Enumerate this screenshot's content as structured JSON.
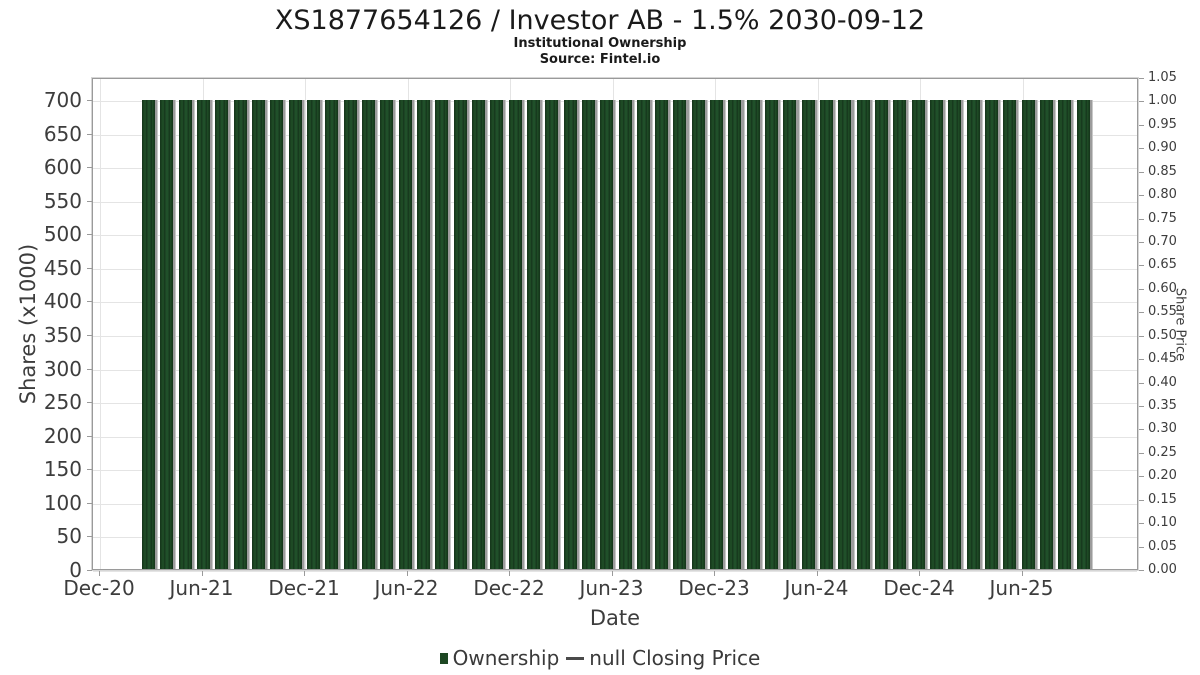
{
  "header": {
    "title": "XS1877654126 / Investor AB - 1.5% 2030-09-12",
    "subtitle": "Institutional Ownership",
    "source": "Source: Fintel.io"
  },
  "colors": {
    "bar_green": "#1d4723",
    "bar_green_edge": "#16381c",
    "bar_shadow_gray": "#9c9c9c",
    "grid": "#e4e4e4",
    "spine": "#9a9a9a",
    "text": "#3d3d3d",
    "title_text": "#1a1a1a"
  },
  "legend": {
    "items": [
      {
        "label": "Ownership",
        "marker": "square",
        "color": "#1d4723"
      },
      {
        "label": "null Closing Price",
        "marker": "line",
        "color": "#4a4a4a"
      }
    ]
  },
  "chart_data": {
    "type": "bar",
    "title": "XS1877654126 / Investor AB - 1.5% 2030-09-12",
    "subtitle": "Institutional Ownership",
    "source": "Source: Fintel.io",
    "xlabel": "Date",
    "ylabel_left": "Shares (x1000)",
    "ylabel_right": "Share Price",
    "grid": true,
    "legend_position": "bottom-center",
    "x_axis": {
      "tick_labels": [
        "Dec-20",
        "Jun-21",
        "Dec-21",
        "Jun-22",
        "Dec-22",
        "Jun-23",
        "Dec-23",
        "Jun-24",
        "Dec-24",
        "Jun-25"
      ]
    },
    "y_axis_left": {
      "min": 0,
      "max": 733,
      "tick_min": 0,
      "tick_max": 700,
      "step": 50,
      "tick_labels": [
        "0",
        "50",
        "100",
        "150",
        "200",
        "250",
        "300",
        "350",
        "400",
        "450",
        "500",
        "550",
        "600",
        "650",
        "700"
      ]
    },
    "y_axis_right": {
      "min": 0.0,
      "max": 1.05,
      "step": 0.05,
      "tick_labels": [
        "0.00",
        "0.05",
        "0.10",
        "0.15",
        "0.20",
        "0.25",
        "0.30",
        "0.35",
        "0.40",
        "0.45",
        "0.50",
        "0.55",
        "0.60",
        "0.65",
        "0.70",
        "0.75",
        "0.80",
        "0.85",
        "0.90",
        "0.95",
        "1.00",
        "1.05"
      ]
    },
    "series": [
      {
        "name": "Ownership",
        "type": "bar",
        "color": "#1d4723",
        "categories": [
          "Mar-21",
          "Apr-21",
          "May-21",
          "Jun-21",
          "Jul-21",
          "Aug-21",
          "Sep-21",
          "Oct-21",
          "Nov-21",
          "Dec-21",
          "Jan-22",
          "Feb-22",
          "Mar-22",
          "Apr-22",
          "May-22",
          "Jun-22",
          "Jul-22",
          "Aug-22",
          "Sep-22",
          "Oct-22",
          "Nov-22",
          "Dec-22",
          "Jan-23",
          "Feb-23",
          "Mar-23",
          "Apr-23",
          "May-23",
          "Jun-23",
          "Jul-23",
          "Aug-23",
          "Sep-23",
          "Oct-23",
          "Nov-23",
          "Dec-23",
          "Jan-24",
          "Feb-24",
          "Mar-24",
          "Apr-24",
          "May-24",
          "Jun-24",
          "Jul-24",
          "Aug-24",
          "Sep-24",
          "Oct-24",
          "Nov-24",
          "Dec-24",
          "Jan-25",
          "Feb-25",
          "Mar-25",
          "Apr-25",
          "May-25",
          "Jun-25"
        ],
        "values": [
          700,
          700,
          700,
          700,
          700,
          700,
          700,
          700,
          700,
          700,
          700,
          700,
          700,
          700,
          700,
          700,
          700,
          700,
          700,
          700,
          700,
          700,
          700,
          700,
          700,
          700,
          700,
          700,
          700,
          700,
          700,
          700,
          700,
          700,
          700,
          700,
          700,
          700,
          700,
          700,
          700,
          700,
          700,
          700,
          700,
          700,
          700,
          700,
          700,
          700,
          700,
          700
        ]
      },
      {
        "name": "null Closing Price",
        "type": "line",
        "color": "#4a4a4a",
        "values": []
      }
    ]
  }
}
